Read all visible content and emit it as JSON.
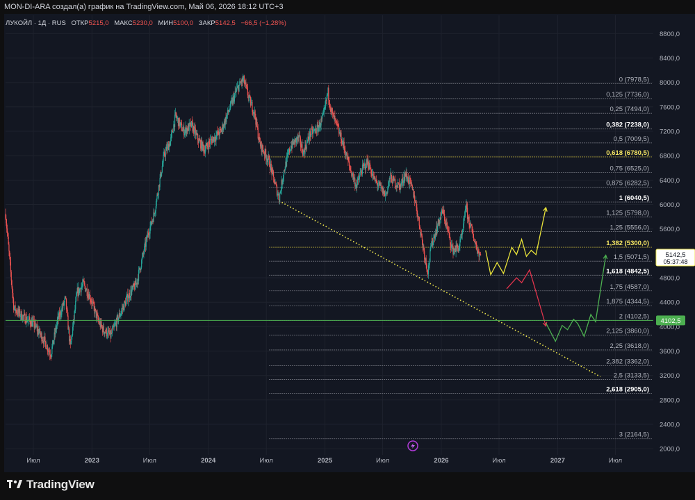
{
  "header": {
    "attribution": "MON-DI-ARA создал(а) график на TradingView.com, Май 06, 2026 18:12 UTC+3"
  },
  "legend": {
    "symbol": "ЛУКОЙЛ · 1Д · RUS",
    "open_label": "ОТКР",
    "open_value": "5215,0",
    "high_label": "МАКС",
    "high_value": "5230,0",
    "low_label": "МИН",
    "low_value": "5100,0",
    "close_label": "ЗАКР",
    "close_value": "5142,5",
    "change": "−66,5 (−1,28%)"
  },
  "price_badge": {
    "price": "5142,5",
    "countdown": "05:37:48"
  },
  "line_badge": {
    "price": "4102,5"
  },
  "footer": {
    "brand": "TradingView"
  },
  "colors": {
    "up": "#26a69a",
    "down": "#ef5350",
    "background": "#131722",
    "grid": "#1e222d",
    "accent_yellow": "#f2e94e",
    "green_line": "#4caf50"
  },
  "icons": {
    "lightning": "lightning-icon",
    "logo": "tradingview-logo-icon"
  },
  "chart_data": {
    "type": "candlestick",
    "title": "",
    "y_scale": "linear",
    "ylim": [
      1900,
      9100
    ],
    "y_ticks": [
      {
        "v": 8800,
        "label": "8800,0"
      },
      {
        "v": 8400,
        "label": "8400,0"
      },
      {
        "v": 8000,
        "label": "8000,0"
      },
      {
        "v": 7600,
        "label": "7600,0"
      },
      {
        "v": 7200,
        "label": "7200,0"
      },
      {
        "v": 6800,
        "label": "6800,0"
      },
      {
        "v": 6400,
        "label": "6400,0"
      },
      {
        "v": 6000,
        "label": "6000,0"
      },
      {
        "v": 5600,
        "label": "5600,0"
      },
      {
        "v": 4800,
        "label": "4800,0"
      },
      {
        "v": 4400,
        "label": "4400,0"
      },
      {
        "v": 4000,
        "label": "4000,0"
      },
      {
        "v": 3600,
        "label": "3600,0"
      },
      {
        "v": 3200,
        "label": "3200,0"
      },
      {
        "v": 2800,
        "label": "2800,0"
      },
      {
        "v": 2400,
        "label": "2400,0"
      },
      {
        "v": 2000,
        "label": "2000,0"
      }
    ],
    "xlim": [
      "2022-04-05",
      "2027-10-28"
    ],
    "x_ticks": [
      {
        "date": "2022-07-01",
        "label": "Июл",
        "bold": false
      },
      {
        "date": "2023-01-01",
        "label": "2023",
        "bold": true
      },
      {
        "date": "2023-07-01",
        "label": "Июл",
        "bold": false
      },
      {
        "date": "2024-01-01",
        "label": "2024",
        "bold": true
      },
      {
        "date": "2024-07-01",
        "label": "Июл",
        "bold": false
      },
      {
        "date": "2025-01-01",
        "label": "2025",
        "bold": true
      },
      {
        "date": "2025-07-01",
        "label": "Июл",
        "bold": false
      },
      {
        "date": "2026-01-01",
        "label": "2026",
        "bold": true
      },
      {
        "date": "2026-07-01",
        "label": "Июл",
        "bold": false
      },
      {
        "date": "2027-01-01",
        "label": "2027",
        "bold": true
      },
      {
        "date": "2027-07-01",
        "label": "Июл",
        "bold": false
      }
    ],
    "price_path": [
      [
        "2022-04-05",
        5850
      ],
      [
        "2022-05-01",
        4300
      ],
      [
        "2022-06-01",
        4150
      ],
      [
        "2022-07-01",
        4050
      ],
      [
        "2022-08-01",
        3800
      ],
      [
        "2022-08-25",
        3550
      ],
      [
        "2022-09-15",
        4100
      ],
      [
        "2022-10-10",
        4450
      ],
      [
        "2022-10-25",
        3650
      ],
      [
        "2022-11-15",
        4550
      ],
      [
        "2022-12-05",
        4700
      ],
      [
        "2022-12-25",
        4500
      ],
      [
        "2023-01-20",
        4100
      ],
      [
        "2023-02-05",
        3950
      ],
      [
        "2023-03-01",
        3850
      ],
      [
        "2023-03-25",
        4150
      ],
      [
        "2023-04-25",
        4500
      ],
      [
        "2023-05-20",
        4700
      ],
      [
        "2023-06-25",
        5500
      ],
      [
        "2023-07-15",
        5850
      ],
      [
        "2023-08-15",
        6800
      ],
      [
        "2023-09-05",
        7050
      ],
      [
        "2023-09-20",
        7450
      ],
      [
        "2023-10-15",
        7200
      ],
      [
        "2023-11-10",
        7300
      ],
      [
        "2023-12-01",
        7050
      ],
      [
        "2023-12-20",
        6900
      ],
      [
        "2024-01-10",
        7050
      ],
      [
        "2024-02-10",
        7200
      ],
      [
        "2024-03-10",
        7600
      ],
      [
        "2024-04-01",
        7900
      ],
      [
        "2024-04-20",
        8050
      ],
      [
        "2024-05-10",
        7700
      ],
      [
        "2024-05-25",
        7500
      ],
      [
        "2024-06-10",
        7000
      ],
      [
        "2024-06-25",
        6850
      ],
      [
        "2024-07-10",
        6700
      ],
      [
        "2024-07-25",
        6400
      ],
      [
        "2024-08-10",
        6100
      ],
      [
        "2024-08-25",
        6550
      ],
      [
        "2024-09-15",
        6950
      ],
      [
        "2024-10-10",
        7100
      ],
      [
        "2024-10-25",
        6850
      ],
      [
        "2024-11-15",
        7150
      ],
      [
        "2024-12-10",
        7250
      ],
      [
        "2024-12-28",
        7450
      ],
      [
        "2025-01-10",
        7850
      ],
      [
        "2025-01-22",
        7500
      ],
      [
        "2025-02-10",
        7250
      ],
      [
        "2025-03-01",
        6950
      ],
      [
        "2025-03-20",
        6600
      ],
      [
        "2025-04-10",
        6300
      ],
      [
        "2025-04-25",
        6550
      ],
      [
        "2025-05-15",
        6700
      ],
      [
        "2025-06-05",
        6400
      ],
      [
        "2025-06-20",
        6300
      ],
      [
        "2025-07-10",
        6150
      ],
      [
        "2025-07-25",
        6450
      ],
      [
        "2025-08-10",
        6350
      ],
      [
        "2025-08-25",
        6300
      ],
      [
        "2025-09-10",
        6500
      ],
      [
        "2025-09-25",
        6350
      ],
      [
        "2025-10-10",
        6100
      ],
      [
        "2025-10-25",
        5650
      ],
      [
        "2025-11-10",
        5150
      ],
      [
        "2025-11-20",
        4900
      ],
      [
        "2025-12-01",
        5350
      ],
      [
        "2025-12-20",
        5650
      ],
      [
        "2026-01-05",
        5900
      ],
      [
        "2026-01-20",
        5600
      ],
      [
        "2026-02-05",
        5250
      ],
      [
        "2026-02-25",
        5300
      ],
      [
        "2026-03-10",
        5550
      ],
      [
        "2026-03-18",
        6000
      ],
      [
        "2026-03-25",
        5800
      ],
      [
        "2026-04-10",
        5500
      ],
      [
        "2026-04-25",
        5250
      ],
      [
        "2026-05-06",
        5142
      ]
    ],
    "fib_levels": [
      {
        "v": 7978.5,
        "label": "0 (7978,5)",
        "emph": false,
        "hl": false
      },
      {
        "v": 7736.0,
        "label": "0,125 (7736,0)",
        "emph": false,
        "hl": false
      },
      {
        "v": 7494.0,
        "label": "0,25 (7494,0)",
        "emph": false,
        "hl": false
      },
      {
        "v": 7238.0,
        "label": "0,382 (7238,0)",
        "emph": true,
        "hl": false
      },
      {
        "v": 7009.5,
        "label": "0,5 (7009,5)",
        "emph": false,
        "hl": false
      },
      {
        "v": 6780.5,
        "label": "0,618 (6780,5)",
        "emph": true,
        "hl": true
      },
      {
        "v": 6525.0,
        "label": "0,75 (6525,0)",
        "emph": false,
        "hl": false
      },
      {
        "v": 6282.5,
        "label": "0,875 (6282,5)",
        "emph": false,
        "hl": false
      },
      {
        "v": 6040.5,
        "label": "1 (6040,5)",
        "emph": true,
        "hl": false
      },
      {
        "v": 5798.0,
        "label": "1,125 (5798,0)",
        "emph": false,
        "hl": false
      },
      {
        "v": 5556.0,
        "label": "1,25 (5556,0)",
        "emph": false,
        "hl": false
      },
      {
        "v": 5300.0,
        "label": "1,382 (5300,0)",
        "emph": true,
        "hl": true
      },
      {
        "v": 5071.5,
        "label": "1,5 (5071,5)",
        "emph": false,
        "hl": false
      },
      {
        "v": 4842.5,
        "label": "1,618 (4842,5)",
        "emph": true,
        "hl": false
      },
      {
        "v": 4587.0,
        "label": "1,75 (4587,0)",
        "emph": false,
        "hl": false
      },
      {
        "v": 4344.5,
        "label": "1,875 (4344,5)",
        "emph": false,
        "hl": false
      },
      {
        "v": 4102.5,
        "label": "2 (4102,5)",
        "emph": false,
        "hl": false
      },
      {
        "v": 3860.0,
        "label": "2,125 (3860,0)",
        "emph": false,
        "hl": false
      },
      {
        "v": 3618.0,
        "label": "2,25 (3618,0)",
        "emph": false,
        "hl": false
      },
      {
        "v": 3362.0,
        "label": "2,382 (3362,0)",
        "emph": false,
        "hl": false
      },
      {
        "v": 3133.5,
        "label": "2,5 (3133,5)",
        "emph": false,
        "hl": false
      },
      {
        "v": 2905.0,
        "label": "2,618 (2905,0)",
        "emph": true,
        "hl": false
      },
      {
        "v": 2164.5,
        "label": "3 (2164,5)",
        "emph": false,
        "hl": false
      }
    ],
    "fib_x_start": "2024-07-10",
    "horizontal_line": {
      "v": 4102.5,
      "color": "#4caf50"
    },
    "trendline": {
      "points": [
        [
          "2024-08-10",
          6060
        ],
        [
          "2027-05-15",
          3180
        ]
      ],
      "color": "#f2e94e",
      "style": "dotted"
    },
    "scenarios": [
      {
        "name": "yellow",
        "color": "#e8e23a",
        "points": [
          [
            "2026-05-20",
            5250
          ],
          [
            "2026-06-05",
            4850
          ],
          [
            "2026-06-25",
            5050
          ],
          [
            "2026-07-15",
            4870
          ],
          [
            "2026-08-10",
            5300
          ],
          [
            "2026-08-25",
            5180
          ],
          [
            "2026-09-10",
            5430
          ],
          [
            "2026-09-25",
            5150
          ],
          [
            "2026-10-10",
            5250
          ],
          [
            "2026-10-25",
            5180
          ],
          [
            "2026-11-25",
            5950
          ]
        ]
      },
      {
        "name": "red",
        "color": "#e0344c",
        "points": [
          [
            "2026-07-25",
            4620
          ],
          [
            "2026-08-25",
            4800
          ],
          [
            "2026-09-10",
            4720
          ],
          [
            "2026-10-05",
            4930
          ],
          [
            "2026-11-25",
            4010
          ]
        ]
      },
      {
        "name": "green",
        "color": "#4caf50",
        "points": [
          [
            "2026-11-25",
            4060
          ],
          [
            "2026-12-25",
            3760
          ],
          [
            "2027-01-15",
            4020
          ],
          [
            "2027-02-01",
            3950
          ],
          [
            "2027-02-20",
            4120
          ],
          [
            "2027-03-05",
            4050
          ],
          [
            "2027-03-25",
            3840
          ],
          [
            "2027-04-15",
            4200
          ],
          [
            "2027-04-30",
            4080
          ],
          [
            "2027-06-01",
            5170
          ]
        ]
      }
    ]
  }
}
